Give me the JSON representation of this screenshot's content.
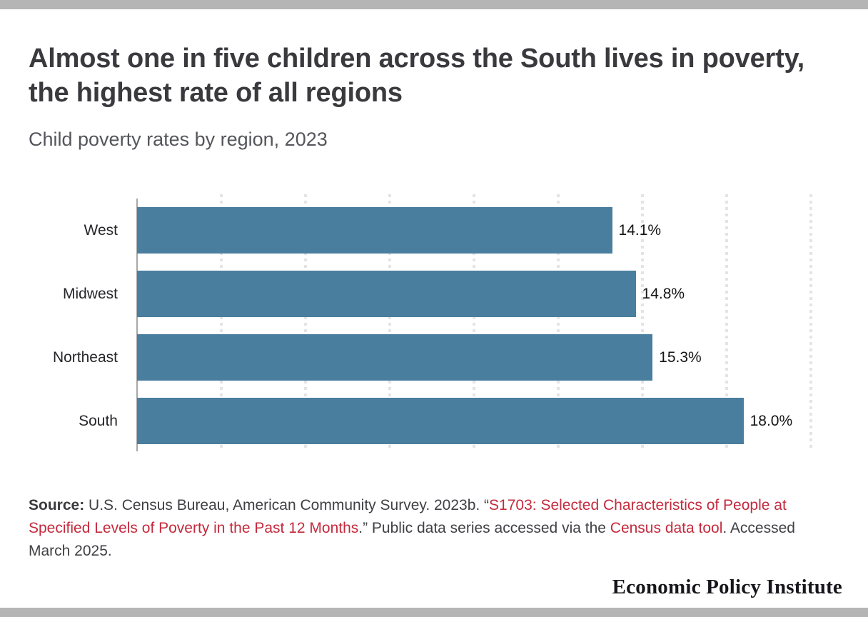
{
  "page": {
    "border_bar_color": "#b5b5b5",
    "background": "#ffffff"
  },
  "header": {
    "title": "Almost one in five children across the South lives in poverty, the highest rate of all regions",
    "subtitle": "Child poverty rates by region, 2023"
  },
  "chart_data": {
    "type": "bar",
    "orientation": "horizontal",
    "title": "Almost one in five children across the South lives in poverty, the highest rate of all regions",
    "subtitle": "Child poverty rates by region, 2023",
    "categories": [
      "West",
      "Midwest",
      "Northeast",
      "South"
    ],
    "values": [
      14.1,
      14.8,
      15.3,
      18.0
    ],
    "value_labels": [
      "14.1%",
      "14.8%",
      "15.3%",
      "18.0%"
    ],
    "xlabel": "",
    "ylabel": "",
    "xlim": [
      0,
      20
    ],
    "gridline_step": 2.5,
    "grid": "dotted-vertical",
    "legend": "none",
    "bar_color": "#4a7e9e",
    "gridline_color": "#e4e4e4",
    "axis_color": "#a8a8a8"
  },
  "source": {
    "link_color": "#c42a3d",
    "parts": [
      {
        "text": "Source:",
        "style": "bold"
      },
      {
        "text": " U.S. Census Bureau, American Community Survey. 2023b. “",
        "style": "normal"
      },
      {
        "text": "S1703: Selected Characteristics of People at Specified Levels of Poverty in the Past 12 Months",
        "style": "link"
      },
      {
        "text": ".” Public data series accessed via the ",
        "style": "normal"
      },
      {
        "text": "Census data tool",
        "style": "link"
      },
      {
        "text": ". Accessed March 2025.",
        "style": "normal"
      }
    ]
  },
  "footer": {
    "brand": "Economic Policy Institute"
  }
}
